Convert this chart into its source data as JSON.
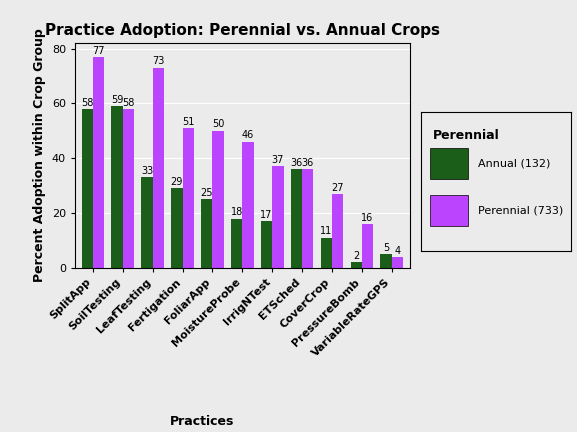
{
  "title": "Practice Adoption: Perennial vs. Annual Crops",
  "xlabel": "Practices",
  "ylabel": "Percent Adoption within Crop Group",
  "practices": [
    "SplitApp",
    "SoilTesting",
    "LeafTesting",
    "Fertigation",
    "FoliarApp",
    "MoistureProbe",
    "IrrigNTest",
    "ETSched",
    "CoverCrop",
    "PressureBomb",
    "VariableRateGPS"
  ],
  "annual_values": [
    58,
    59,
    33,
    29,
    25,
    18,
    17,
    36,
    11,
    2,
    5
  ],
  "perennial_values": [
    77,
    58,
    73,
    51,
    50,
    46,
    37,
    36,
    27,
    16,
    4
  ],
  "annual_color": "#1a5e1a",
  "perennial_color": "#bb44ff",
  "annual_label": "Annual (132)",
  "perennial_label": "Perennial (733)",
  "legend_title": "Perennial",
  "ylim": [
    0,
    82
  ],
  "yticks": [
    0,
    20,
    40,
    60,
    80
  ],
  "bar_width": 0.38,
  "background_color": "#ebebeb",
  "plot_bg_color": "#ebebeb",
  "title_fontsize": 11,
  "label_fontsize": 9,
  "tick_fontsize": 8,
  "annotation_fontsize": 7
}
